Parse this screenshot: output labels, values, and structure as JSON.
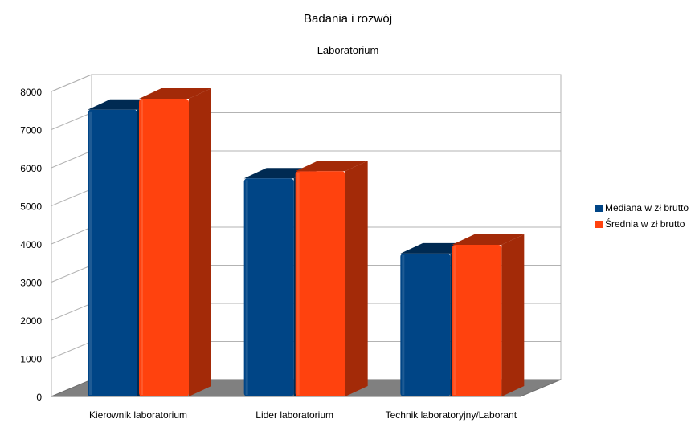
{
  "chart_data": {
    "type": "bar",
    "title": "Badania i rozwój",
    "subtitle": "Laboratorium",
    "xlabel": "",
    "ylabel": "",
    "categories": [
      "Kierownik laboratorium",
      "Lider laboratorium",
      "Technik laboratoryjny/Laborant"
    ],
    "series": [
      {
        "name": "Mediana w zł brutto",
        "values": [
          7520,
          5720,
          3750
        ],
        "color": "#004586",
        "side_color": "#002a52"
      },
      {
        "name": "Średnia w zł brutto",
        "values": [
          7810,
          5910,
          3980
        ],
        "color": "#ff420e",
        "side_color": "#a32a08"
      }
    ],
    "ylim": [
      0,
      8000
    ],
    "yticks": [
      0,
      1000,
      2000,
      3000,
      4000,
      5000,
      6000,
      7000,
      8000
    ],
    "grid": true,
    "legend_position": "right",
    "style": "3d-bar"
  }
}
